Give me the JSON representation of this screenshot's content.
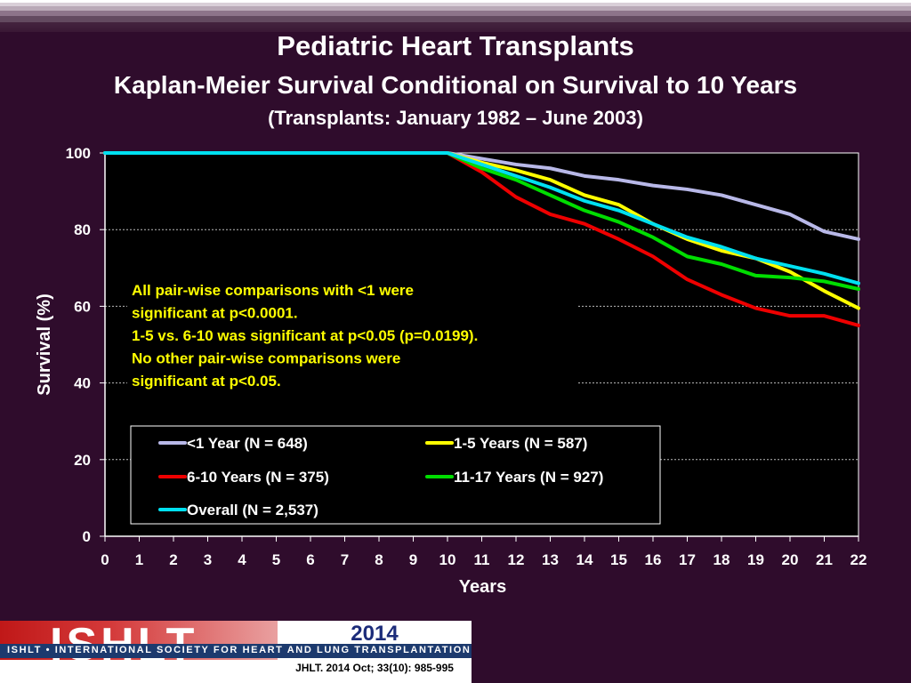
{
  "header": {
    "title": "Pediatric Heart Transplants",
    "subtitle": "Kaplan-Meier Survival Conditional on Survival to 10 Years",
    "subtitle2": "(Transplants: January 1982 – June 2003)"
  },
  "chart_data": {
    "type": "line",
    "xlabel": "Years",
    "ylabel": "Survival (%)",
    "xlim": [
      0,
      22
    ],
    "ylim": [
      0,
      100
    ],
    "x_ticks": [
      "0",
      "1",
      "2",
      "3",
      "4",
      "5",
      "6",
      "7",
      "8",
      "9",
      "10",
      "11",
      "12",
      "13",
      "14",
      "15",
      "16",
      "17",
      "18",
      "19",
      "20",
      "21",
      "22"
    ],
    "y_ticks": [
      "0",
      "20",
      "40",
      "60",
      "80",
      "100"
    ],
    "grid": "horizontal dashed",
    "annotation": [
      "All pair-wise comparisons with <1 were",
      "significant at p<0.0001.",
      "1-5 vs. 6-10 was significant at p<0.05 (p=0.0199).",
      "No other  pair-wise comparisons were",
      "significant at p<0.05."
    ],
    "legend_position": "bottom-center",
    "x": [
      0,
      1,
      2,
      3,
      4,
      5,
      6,
      7,
      8,
      9,
      10,
      11,
      12,
      13,
      14,
      15,
      16,
      17,
      18,
      19,
      20,
      21,
      22
    ],
    "series": [
      {
        "name": "<1 Year (N = 648)",
        "color": "#b8b8e8",
        "values": [
          100,
          100,
          100,
          100,
          100,
          100,
          100,
          100,
          100,
          100,
          100,
          98.5,
          97,
          96,
          94,
          93,
          91.5,
          90.5,
          89,
          86.5,
          84,
          79.5,
          77.5
        ]
      },
      {
        "name": "1-5 Years (N = 587)",
        "color": "#ffff00",
        "values": [
          100,
          100,
          100,
          100,
          100,
          100,
          100,
          100,
          100,
          100,
          100,
          97.5,
          95.5,
          93,
          89,
          86.5,
          81.5,
          77.5,
          74.5,
          72.5,
          69,
          64,
          59.5
        ]
      },
      {
        "name": "6-10 Years (N = 375)",
        "color": "#ee0000",
        "values": [
          100,
          100,
          100,
          100,
          100,
          100,
          100,
          100,
          100,
          100,
          100,
          95,
          88.5,
          84,
          81.5,
          77.5,
          73,
          67,
          63,
          59.5,
          57.5,
          57.5,
          55
        ]
      },
      {
        "name": "11-17 Years (N = 927)",
        "color": "#00dd00",
        "values": [
          100,
          100,
          100,
          100,
          100,
          100,
          100,
          100,
          100,
          100,
          100,
          96,
          93,
          89,
          85,
          82,
          78,
          73,
          71,
          68,
          67.5,
          66.5,
          64.5
        ]
      },
      {
        "name": "Overall (N = 2,537)",
        "color": "#00e0f0",
        "values": [
          100,
          100,
          100,
          100,
          100,
          100,
          100,
          100,
          100,
          100,
          100,
          97,
          94,
          91,
          87.5,
          85,
          81.5,
          78,
          75.5,
          72.5,
          70.5,
          68.5,
          66
        ]
      }
    ]
  },
  "footer": {
    "logo": "ISHLT",
    "org": "ISHLT • INTERNATIONAL SOCIETY FOR HEART AND LUNG TRANSPLANTATION",
    "year": "2014",
    "citation": "JHLT. 2014 Oct; 33(10): 985-995"
  }
}
